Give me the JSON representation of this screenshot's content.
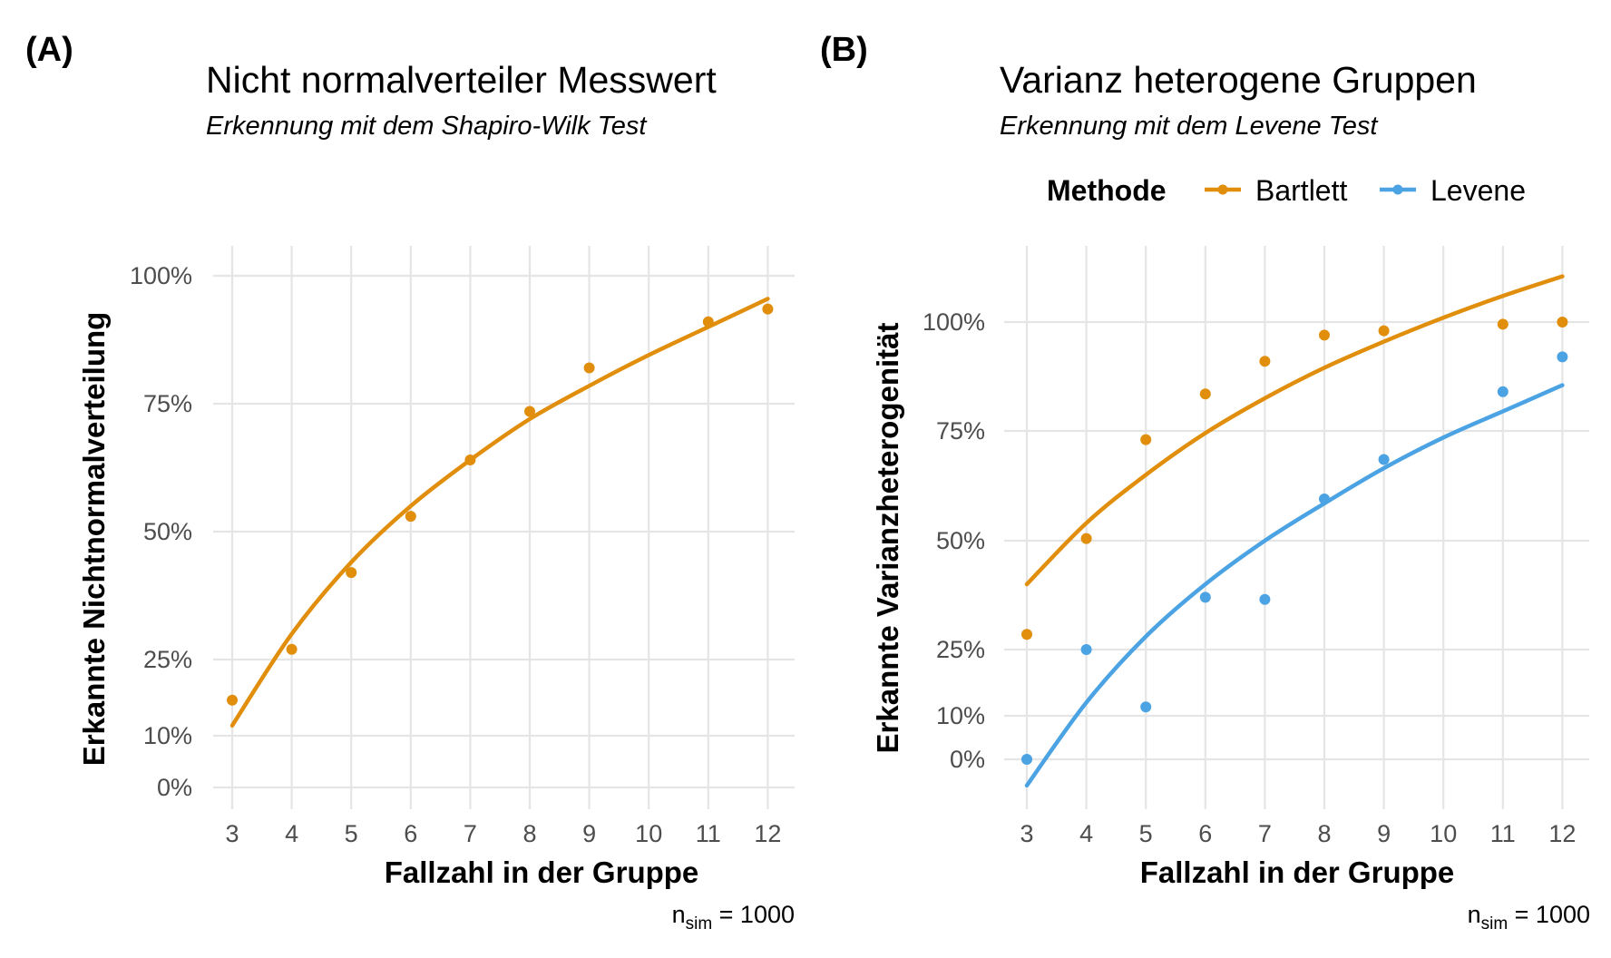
{
  "colors": {
    "bartlett": "#E08E0B",
    "levene": "#4BA3E3",
    "grid": "#e5e5e5",
    "tick": "#4d4d4d"
  },
  "panels": {
    "a": {
      "label": "(A)",
      "title": "Nicht normalverteiler Messwert",
      "subtitle": "Erkennung mit dem Shapiro-Wilk Test",
      "xlabel": "Fallzahl in der Gruppe",
      "ylabel": "Erkannte Nichtnormalverteilung",
      "caption_main": "n",
      "caption_sub": "sim",
      "caption_rest": " = 1000"
    },
    "b": {
      "label": "(B)",
      "title": "Varianz heterogene Gruppen",
      "subtitle": "Erkennung mit dem Levene Test",
      "xlabel": "Fallzahl in der Gruppe",
      "ylabel": "Erkannte Varianzheterogenität",
      "caption_main": "n",
      "caption_sub": "sim",
      "caption_rest": " = 1000",
      "legend": {
        "title": "Methode",
        "items": [
          "Bartlett",
          "Levene"
        ]
      }
    }
  },
  "chart_data": [
    {
      "type": "scatter",
      "panel": "A",
      "title": "Nicht normalverteiler Messwert",
      "subtitle": "Erkennung mit dem Shapiro-Wilk Test",
      "xlabel": "Fallzahl in der Gruppe",
      "ylabel": "Erkannte Nichtnormalverteilung",
      "x": [
        3,
        4,
        5,
        6,
        7,
        8,
        9,
        10,
        11,
        12
      ],
      "x_ticks": [
        "3",
        "4",
        "5",
        "6",
        "7",
        "8",
        "9",
        "10",
        "11",
        "12"
      ],
      "y_ticks": [
        "0%",
        "10%",
        "25%",
        "50%",
        "75%",
        "100%"
      ],
      "y_tick_values": [
        0,
        0.1,
        0.25,
        0.5,
        0.75,
        1.0
      ],
      "xlim": [
        2.8,
        12.5
      ],
      "ylim": [
        -0.05,
        1.06
      ],
      "grid": true,
      "y_scale": "power 0.8",
      "series": [
        {
          "color": "#E08E0B",
          "points": [
            [
              3,
              0.17
            ],
            [
              4,
              0.27
            ],
            [
              5,
              0.42
            ],
            [
              6,
              0.53
            ],
            [
              7,
              0.64
            ],
            [
              8,
              0.735
            ],
            [
              9,
              0.82
            ],
            [
              11,
              0.91
            ],
            [
              12,
              0.935
            ]
          ],
          "fit": [
            [
              3,
              0.12
            ],
            [
              4,
              0.3
            ],
            [
              5,
              0.44
            ],
            [
              6,
              0.55
            ],
            [
              7,
              0.64
            ],
            [
              8,
              0.72
            ],
            [
              9,
              0.785
            ],
            [
              10,
              0.845
            ],
            [
              11,
              0.9
            ],
            [
              12,
              0.955
            ]
          ]
        }
      ],
      "caption": "nsim = 1000"
    },
    {
      "type": "scatter",
      "panel": "B",
      "title": "Varianz heterogene Gruppen",
      "subtitle": "Erkennung mit dem Levene Test",
      "xlabel": "Fallzahl in der Gruppe",
      "ylabel": "Erkannte Varianzheterogenität",
      "x": [
        3,
        4,
        5,
        6,
        7,
        8,
        9,
        10,
        11,
        12
      ],
      "x_ticks": [
        "3",
        "4",
        "5",
        "6",
        "7",
        "8",
        "9",
        "10",
        "11",
        "12"
      ],
      "y_ticks": [
        "0%",
        "10%",
        "25%",
        "50%",
        "75%",
        "100%"
      ],
      "y_tick_values": [
        0,
        0.1,
        0.25,
        0.5,
        0.75,
        1.0
      ],
      "xlim": [
        2.8,
        12.5
      ],
      "ylim": [
        -0.12,
        1.13
      ],
      "grid": true,
      "legend_position": "top",
      "series": [
        {
          "name": "Bartlett",
          "color": "#E08E0B",
          "points": [
            [
              3,
              0.285
            ],
            [
              4,
              0.505
            ],
            [
              5,
              0.73
            ],
            [
              6,
              0.835
            ],
            [
              7,
              0.91
            ],
            [
              8,
              0.97
            ],
            [
              9,
              0.98
            ],
            [
              11,
              0.995
            ],
            [
              12,
              1.0
            ]
          ],
          "fit": [
            [
              3,
              0.4
            ],
            [
              4,
              0.54
            ],
            [
              5,
              0.65
            ],
            [
              6,
              0.745
            ],
            [
              7,
              0.825
            ],
            [
              8,
              0.895
            ],
            [
              9,
              0.955
            ],
            [
              10,
              1.01
            ],
            [
              11,
              1.06
            ],
            [
              12,
              1.105
            ]
          ]
        },
        {
          "name": "Levene",
          "color": "#4BA3E3",
          "points": [
            [
              3,
              0.0
            ],
            [
              4,
              0.25
            ],
            [
              5,
              0.12
            ],
            [
              6,
              0.37
            ],
            [
              7,
              0.365
            ],
            [
              8,
              0.595
            ],
            [
              9,
              0.685
            ],
            [
              11,
              0.84
            ],
            [
              12,
              0.92
            ]
          ],
          "fit": [
            [
              3,
              -0.06
            ],
            [
              4,
              0.13
            ],
            [
              5,
              0.28
            ],
            [
              6,
              0.4
            ],
            [
              7,
              0.5
            ],
            [
              8,
              0.585
            ],
            [
              9,
              0.665
            ],
            [
              10,
              0.735
            ],
            [
              11,
              0.795
            ],
            [
              12,
              0.855
            ]
          ]
        }
      ],
      "caption": "nsim = 1000"
    }
  ]
}
